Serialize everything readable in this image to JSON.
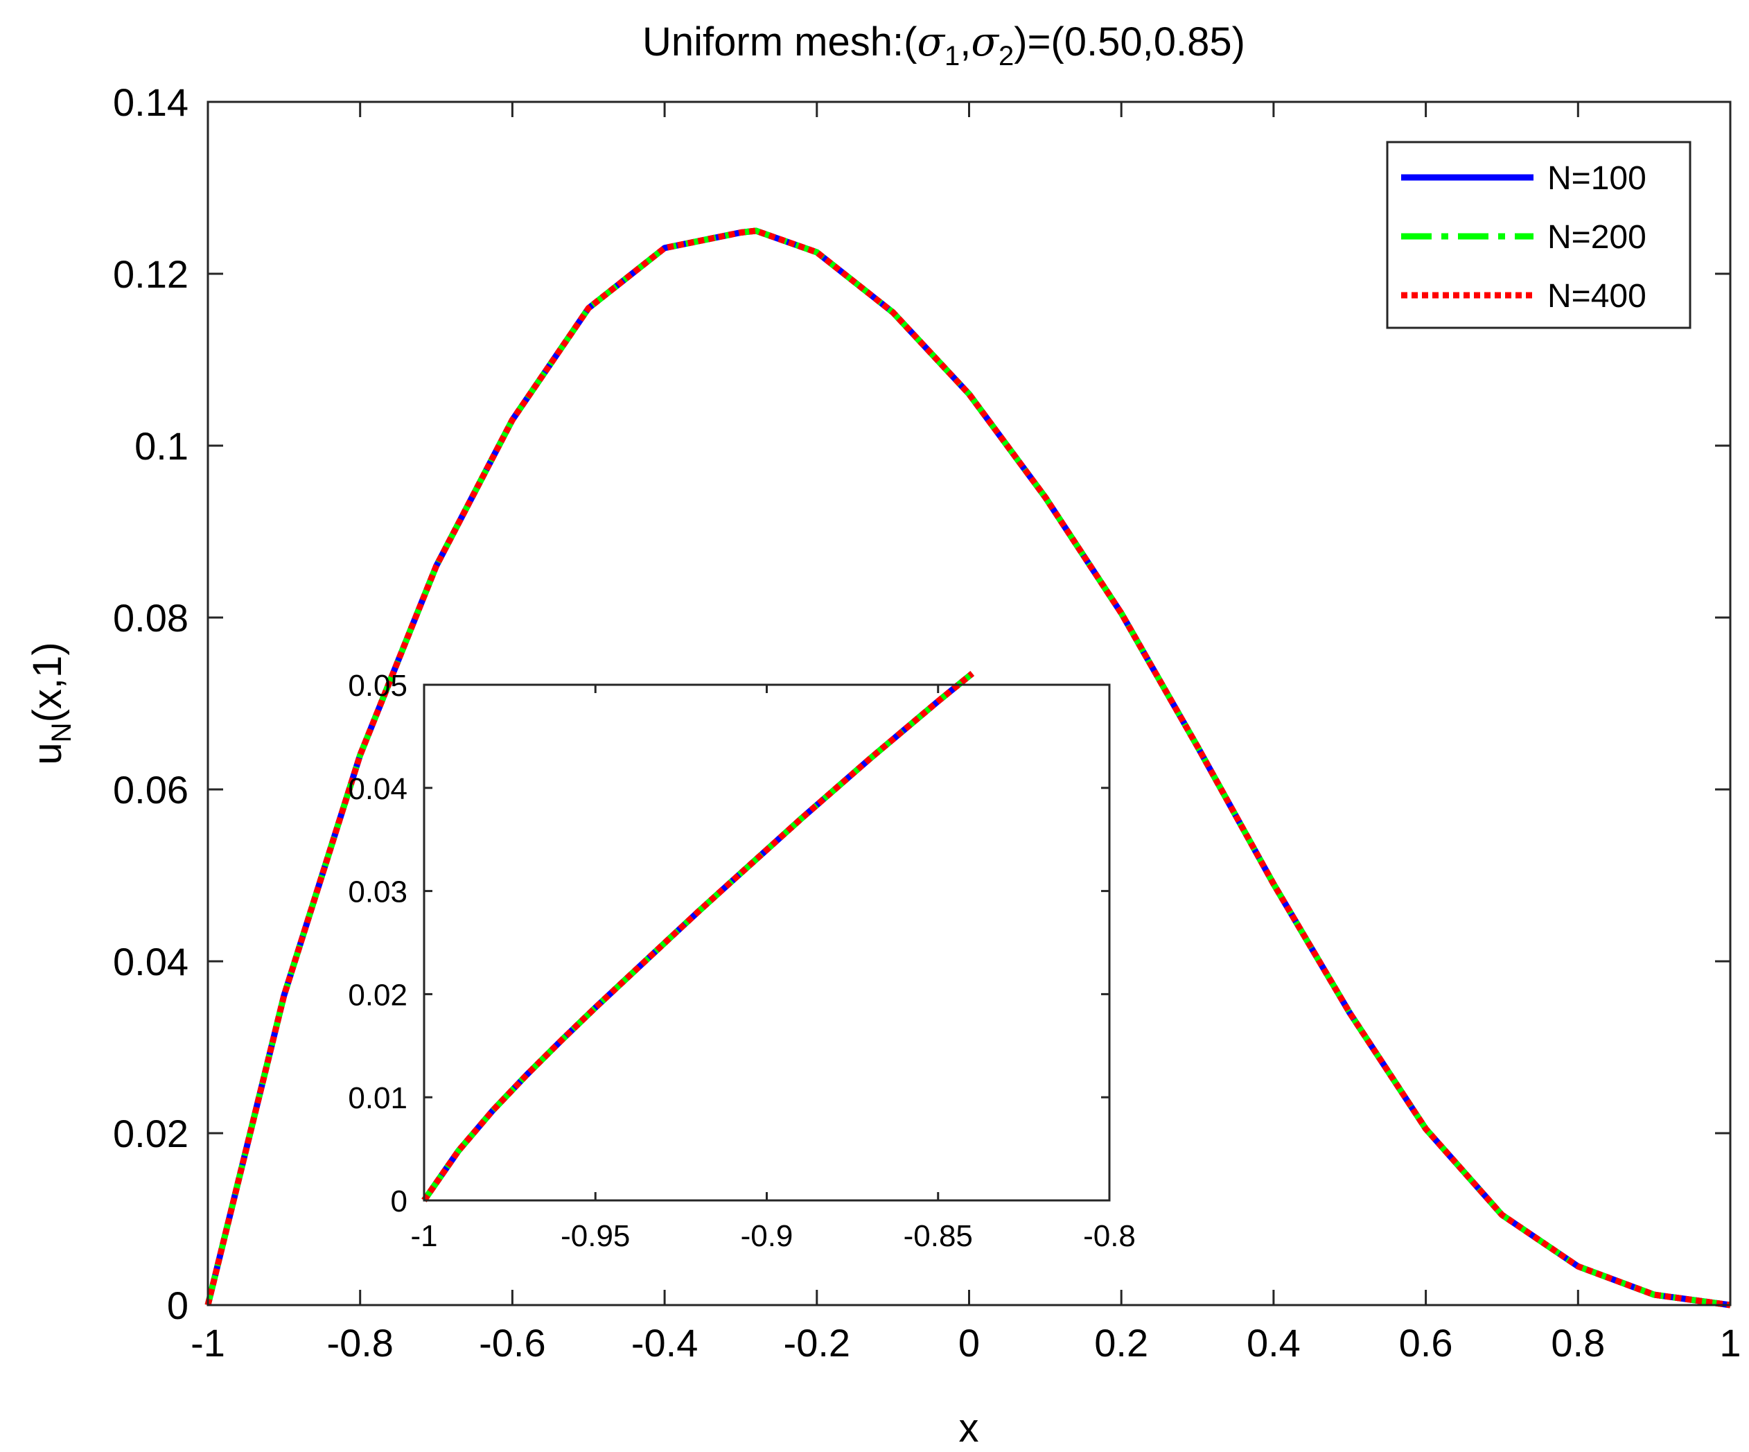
{
  "chart_data": [
    {
      "type": "line",
      "title": {
        "prefix": "Uniform mesh:(",
        "sym1": "σ",
        "sub1": "1",
        "comma": ",",
        "sym2": "σ",
        "sub2": "2",
        "suffix": ")=(0.50,0.85)"
      },
      "xlabel": "x",
      "ylabel": {
        "main": "u",
        "sub": "N",
        "rest": "(x,1)"
      },
      "xlim": [
        -1,
        1
      ],
      "ylim": [
        0,
        0.14
      ],
      "xticks": [
        -1,
        -0.8,
        -0.6,
        -0.4,
        -0.2,
        0,
        0.2,
        0.4,
        0.6,
        0.8,
        1
      ],
      "xtick_labels": [
        "-1",
        "-0.8",
        "-0.6",
        "-0.4",
        "-0.2",
        "0",
        "0.2",
        "0.4",
        "0.6",
        "0.8",
        "1"
      ],
      "yticks": [
        0,
        0.02,
        0.04,
        0.06,
        0.08,
        0.1,
        0.12,
        0.14
      ],
      "ytick_labels": [
        "0",
        "0.02",
        "0.04",
        "0.06",
        "0.08",
        "0.1",
        "0.12",
        "0.14"
      ],
      "grid": false,
      "legend_position": "top-right",
      "series": [
        {
          "name": "N=100",
          "color": "#0000ff",
          "style": "solid"
        },
        {
          "name": "N=200",
          "color": "#00ff00",
          "style": "dash-dot"
        },
        {
          "name": "N=400",
          "color": "#ff0000",
          "style": "dotted"
        }
      ],
      "x": [
        -1,
        -0.9,
        -0.8,
        -0.7,
        -0.6,
        -0.5,
        -0.4,
        -0.3,
        -0.28,
        -0.2,
        -0.1,
        0,
        0.1,
        0.2,
        0.3,
        0.4,
        0.5,
        0.6,
        0.7,
        0.8,
        0.9,
        1
      ],
      "y": [
        0,
        0.036,
        0.064,
        0.086,
        0.103,
        0.116,
        0.123,
        0.1248,
        0.125,
        0.1225,
        0.1155,
        0.106,
        0.094,
        0.0805,
        0.065,
        0.049,
        0.034,
        0.0205,
        0.0105,
        0.0045,
        0.0012,
        0
      ]
    },
    {
      "type": "line",
      "role": "inset",
      "xlim": [
        -1,
        -0.8
      ],
      "ylim": [
        0,
        0.05
      ],
      "xticks": [
        -1,
        -0.95,
        -0.9,
        -0.85,
        -0.8
      ],
      "xtick_labels": [
        "-1",
        "-0.95",
        "-0.9",
        "-0.85",
        "-0.8"
      ],
      "yticks": [
        0,
        0.01,
        0.02,
        0.03,
        0.04,
        0.05
      ],
      "ytick_labels": [
        "0",
        "0.01",
        "0.02",
        "0.03",
        "0.04",
        "0.05"
      ],
      "series": [
        {
          "name": "N=100",
          "color": "#0000ff",
          "style": "solid"
        },
        {
          "name": "N=200",
          "color": "#00ff00",
          "style": "dash-dot"
        },
        {
          "name": "N=400",
          "color": "#ff0000",
          "style": "dotted"
        }
      ],
      "x": [
        -1,
        -0.99,
        -0.98,
        -0.97,
        -0.96,
        -0.95,
        -0.94,
        -0.93,
        -0.92,
        -0.91,
        -0.9,
        -0.89,
        -0.88,
        -0.87,
        -0.86,
        -0.85,
        -0.84
      ],
      "y": [
        0,
        0.0048,
        0.0087,
        0.0122,
        0.0155,
        0.0187,
        0.0218,
        0.0249,
        0.028,
        0.031,
        0.034,
        0.037,
        0.0399,
        0.0428,
        0.0456,
        0.0484,
        0.0511
      ]
    }
  ]
}
